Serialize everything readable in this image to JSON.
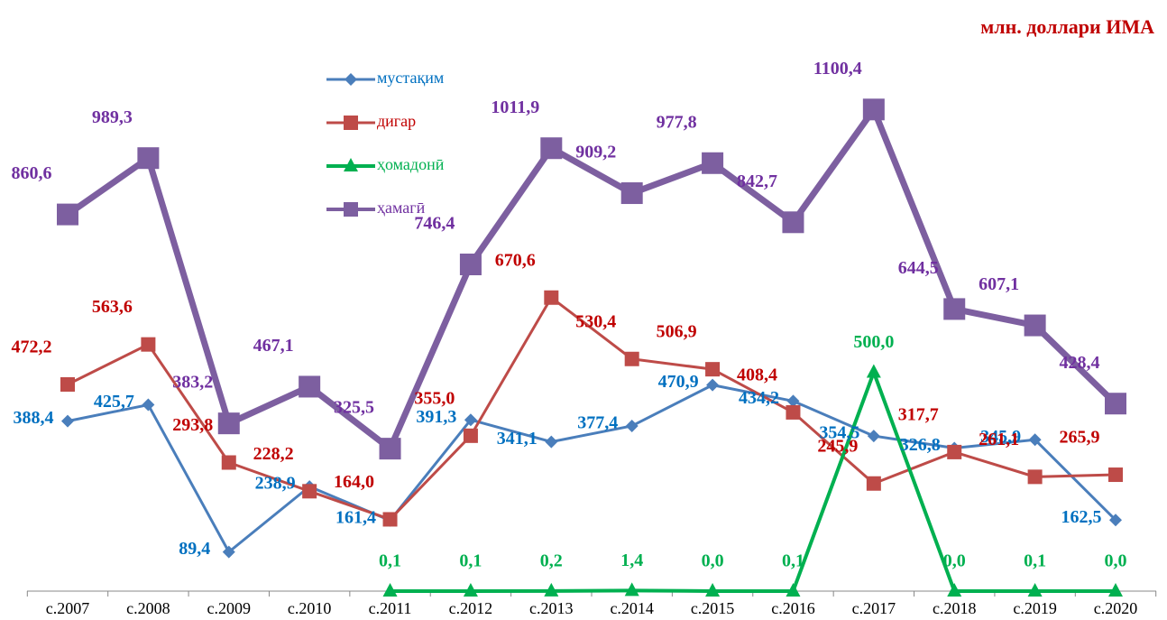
{
  "chart_data": {
    "type": "line",
    "subtitle": "млн. доллари ИМА",
    "categories": [
      "с.2007",
      "с.2008",
      "с.2009",
      "с.2010",
      "с.2011",
      "с.2012",
      "с.2013",
      "с.2014",
      "с.2015",
      "с.2016",
      "с.2017",
      "с.2018",
      "с.2019",
      "с.2020"
    ],
    "ylim": [
      0,
      1200
    ],
    "series": [
      {
        "name": "мустақим",
        "color": "#4a7ebb",
        "label_color": "#0070c0",
        "marker": "diamond",
        "values": [
          388.4,
          425.7,
          89.4,
          238.9,
          161.4,
          391.3,
          341.1,
          377.4,
          470.9,
          434.2,
          354.5,
          326.8,
          345.9,
          162.5
        ],
        "value_labels": [
          "388,4",
          "425,7",
          "89,4",
          "238,9",
          "161,4",
          "391,3",
          "341,1",
          "377,4",
          "470,9",
          "434,2",
          "354,5",
          "326,8",
          "345,9",
          "162,5"
        ]
      },
      {
        "name": "дигар",
        "color": "#be4b48",
        "label_color": "#c00000",
        "marker": "square",
        "values": [
          472.2,
          563.6,
          293.8,
          228.2,
          164.0,
          355.0,
          670.6,
          530.4,
          506.9,
          408.4,
          245.9,
          317.7,
          261.1,
          265.9
        ],
        "value_labels": [
          "472,2",
          "563,6",
          "293,8",
          "228,2",
          "164,0",
          "355,0",
          "670,6",
          "530,4",
          "506,9",
          "408,4",
          "245,9",
          "317,7",
          "261,1",
          "265,9"
        ]
      },
      {
        "name": "ҳомадонӣ",
        "color": "#00b050",
        "label_color": "#00b050",
        "marker": "triangle",
        "values": [
          null,
          null,
          null,
          null,
          0.1,
          0.1,
          0.2,
          1.4,
          0.0,
          0.1,
          500.0,
          0.0,
          0.1,
          0.0
        ],
        "value_labels": [
          null,
          null,
          null,
          null,
          "0,1",
          "0,1",
          "0,2",
          "1,4",
          "0,0",
          "0,1",
          "500,0",
          "0,0",
          "0,1",
          "0,0"
        ]
      },
      {
        "name": "ҳамагӣ",
        "color": "#7d5fa0",
        "label_color": "#7030a0",
        "marker": "bigsquare",
        "values": [
          860.6,
          989.3,
          383.2,
          467.1,
          325.5,
          746.4,
          1011.9,
          909.2,
          977.8,
          842.7,
          1100.4,
          644.5,
          607.1,
          428.4
        ],
        "value_labels": [
          "860,6",
          "989,3",
          "383,2",
          "467,1",
          "325,5",
          "746,4",
          "1011,9",
          "909,2",
          "977,8",
          "842,7",
          "1100,4",
          "644,5",
          "607,1",
          "428,4"
        ]
      }
    ]
  }
}
